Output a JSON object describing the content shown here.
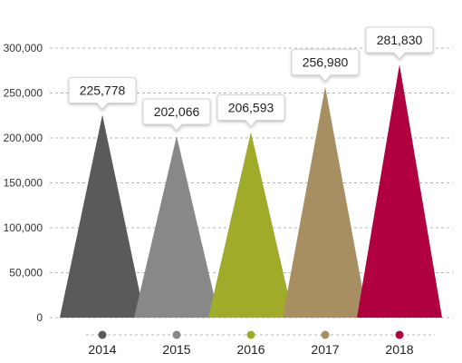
{
  "chart_data": {
    "type": "bar",
    "title": "",
    "xlabel": "",
    "ylabel": "",
    "categories": [
      "2014",
      "2015",
      "2016",
      "2017",
      "2018"
    ],
    "values": [
      225778,
      202066,
      206593,
      256980,
      281830
    ],
    "value_labels": [
      "225,778",
      "202,066",
      "206,593",
      "256,980",
      "281,830"
    ],
    "colors": [
      "#5a5a5a",
      "#888888",
      "#a0ab2a",
      "#a88f62",
      "#b0003f"
    ],
    "ylim": [
      0,
      300000
    ],
    "yticks": [
      0,
      50000,
      100000,
      150000,
      200000,
      250000,
      300000
    ],
    "ytick_labels": [
      "0",
      "50,000",
      "100,000",
      "150,000",
      "200,000",
      "250,000",
      "300,000"
    ],
    "grid": true,
    "grid_style": "dashed",
    "mark_shape": "triangle",
    "legend": "none"
  }
}
